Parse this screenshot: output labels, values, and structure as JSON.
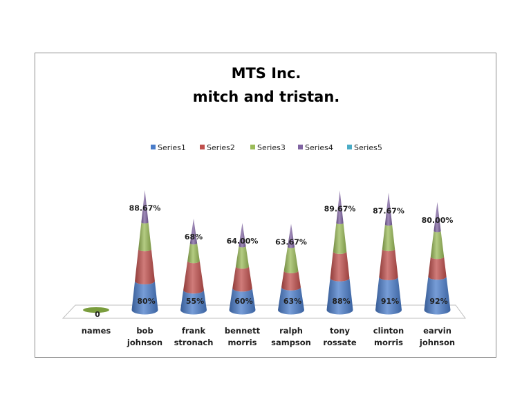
{
  "chart_data": {
    "type": "bar",
    "subtype": "3d-cone-stacked",
    "title": [
      "MTS Inc.",
      "mitch and tristan."
    ],
    "legend_position": "top",
    "categories": [
      [
        "names"
      ],
      [
        "bob",
        "johnson"
      ],
      [
        "frank",
        "stronach"
      ],
      [
        "bennett",
        "morris"
      ],
      [
        "ralph",
        "sampson"
      ],
      [
        "tony",
        "rossate"
      ],
      [
        "clinton",
        "morris"
      ],
      [
        "earvin",
        "johnson"
      ]
    ],
    "series": [
      {
        "name": "Series1",
        "color": "#4a7cc9",
        "values": [
          0,
          80,
          55,
          60,
          63,
          88,
          91,
          92
        ],
        "labels": [
          "0",
          "80%",
          "55%",
          "60%",
          "63%",
          "88%",
          "91%",
          "92%"
        ]
      },
      {
        "name": "Series2",
        "color": "#c0504d",
        "values": [
          0,
          88,
          80,
          60,
          45,
          73,
          77,
          55
        ]
      },
      {
        "name": "Series3",
        "color": "#9bbb59",
        "values": [
          0,
          74,
          49,
          56,
          66,
          79,
          68,
          71
        ]
      },
      {
        "name": "Series4",
        "color": "#8064a2",
        "values": [
          0,
          88.67,
          68,
          64,
          63.67,
          89.67,
          87.67,
          80
        ],
        "labels": [
          "",
          "88.67%",
          "68%",
          "64.00%",
          "63.67%",
          "89.67%",
          "87.67%",
          "80.00%"
        ]
      },
      {
        "name": "Series5",
        "color": "#4bacc6",
        "values": [
          0,
          0,
          0,
          0,
          0,
          0,
          0,
          0
        ]
      }
    ],
    "gridlines": false
  }
}
